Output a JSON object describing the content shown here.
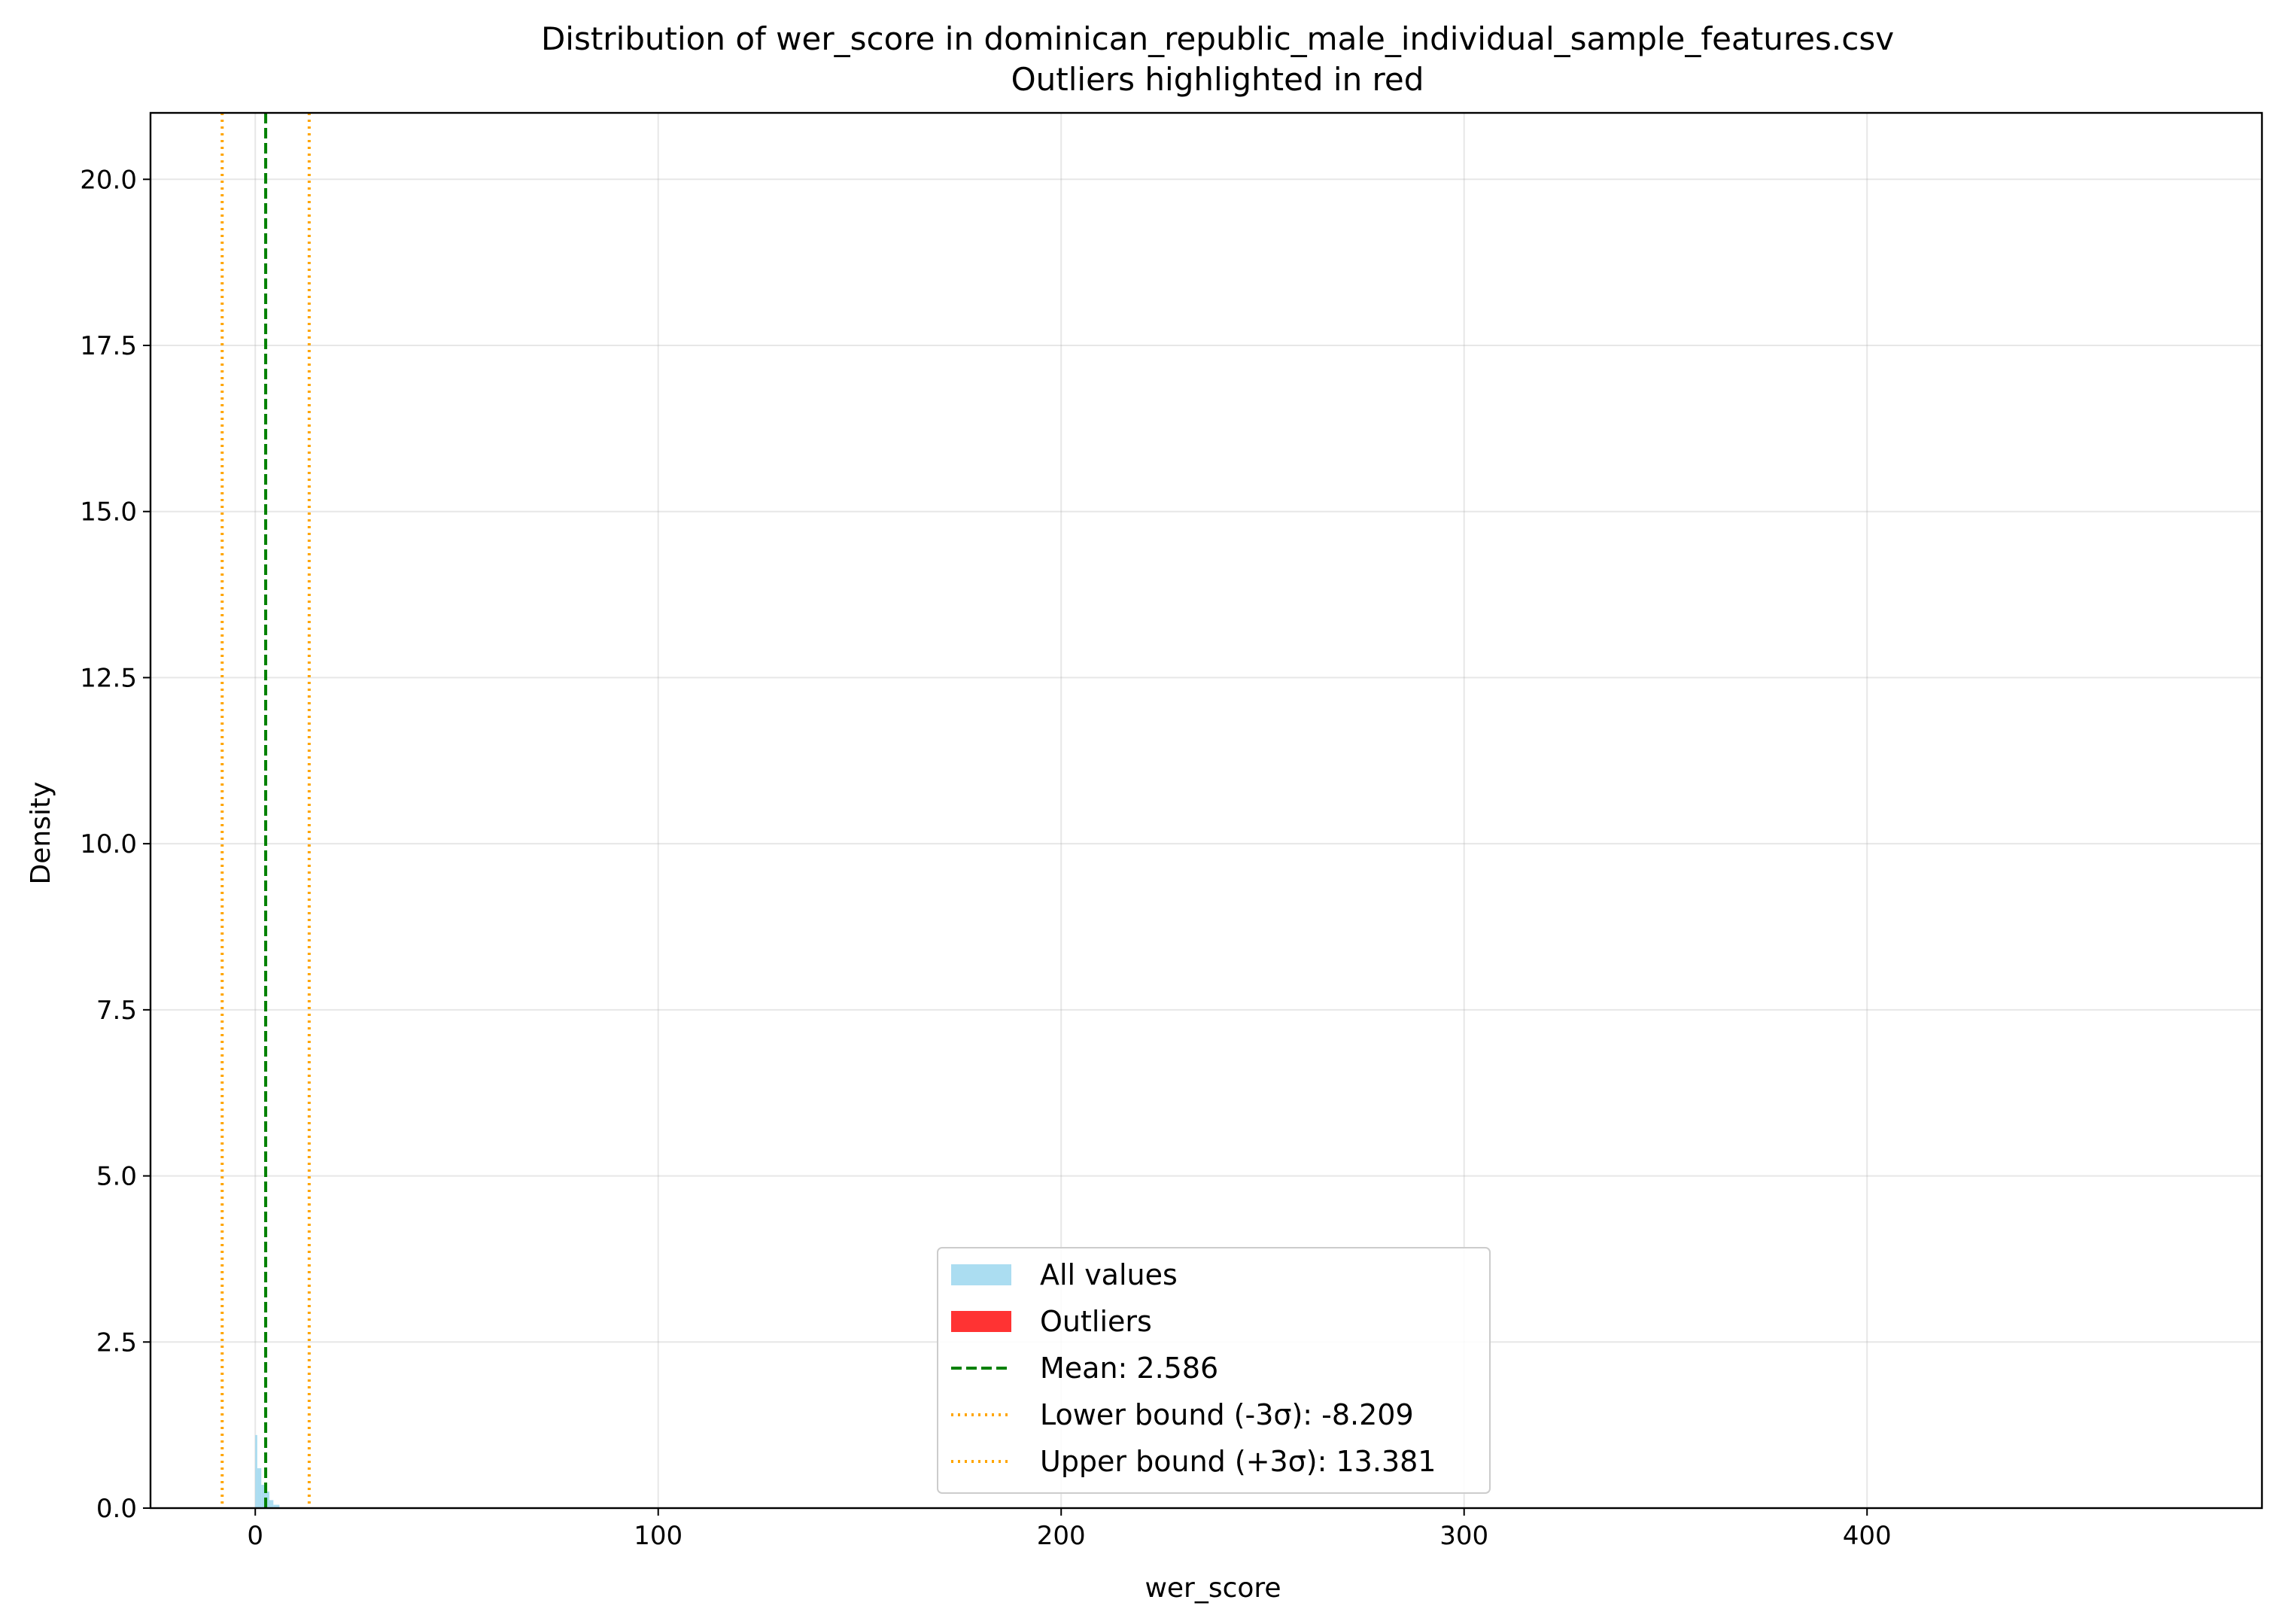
{
  "chart_data": {
    "type": "histogram",
    "title": "Distribution of wer_score in dominican_republic_male_individual_sample_features.csv",
    "subtitle": "Outliers highlighted in red",
    "xlabel": "wer_score",
    "ylabel": "Density",
    "xlim": [
      -26,
      498
    ],
    "ylim": [
      0,
      21
    ],
    "x_ticks": [
      0,
      100,
      200,
      300,
      400
    ],
    "x_tick_labels": [
      "0",
      "100",
      "200",
      "300",
      "400"
    ],
    "y_ticks": [
      0,
      2.5,
      5,
      7.5,
      10,
      12.5,
      15,
      17.5,
      20
    ],
    "y_tick_labels": [
      "0.0",
      "2.5",
      "5.0",
      "7.5",
      "10.0",
      "12.5",
      "15.0",
      "17.5",
      "20.0"
    ],
    "grid": true,
    "legend_position": "lower center",
    "series": [
      {
        "name": "All values",
        "kind": "histogram",
        "color": "#87CEEB",
        "bins": [
          [
            0,
            0.5,
            1.1
          ],
          [
            0.5,
            1.5,
            0.6
          ],
          [
            1.5,
            2.5,
            0.35
          ],
          [
            2.5,
            3.5,
            0.25
          ],
          [
            3.5,
            4.5,
            0.12
          ],
          [
            4.5,
            6,
            0.05
          ]
        ]
      },
      {
        "name": "Outliers",
        "kind": "histogram",
        "color": "#FF0000",
        "bins": []
      },
      {
        "name": "Mean: 2.586",
        "kind": "vline",
        "x": 2.586,
        "color": "#008000",
        "style": "dashed"
      },
      {
        "name": "Lower bound (-3σ): -8.209",
        "kind": "vline",
        "x": -8.209,
        "color": "#FFA500",
        "style": "dotted"
      },
      {
        "name": "Upper bound (+3σ): 13.381",
        "kind": "vline",
        "x": 13.381,
        "color": "#FFA500",
        "style": "dotted"
      }
    ]
  }
}
